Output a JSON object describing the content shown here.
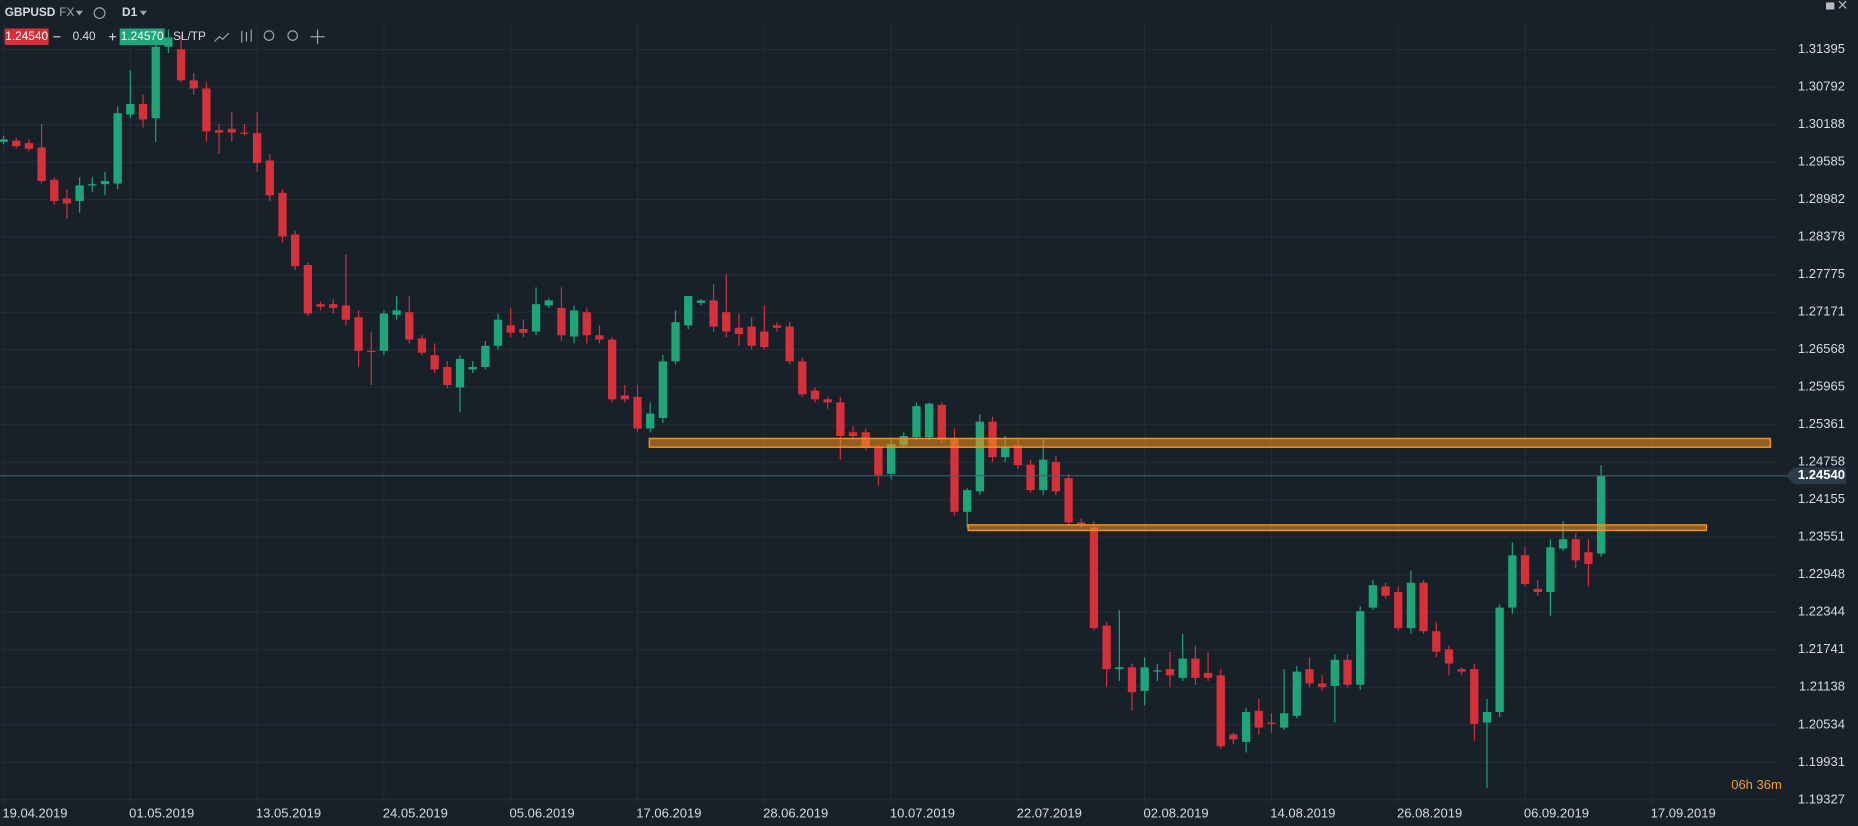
{
  "header": {
    "symbol": "GBPUSD",
    "market": "FX",
    "timeframe": "D1",
    "bid": "1.24540",
    "spread": "0.40",
    "ask": "1.24570",
    "sltp": "SL/TP",
    "countdown": "06h 36m"
  },
  "chart_data": {
    "type": "candlestick",
    "categories": [
      "19.04.2019",
      null,
      null,
      null,
      null,
      null,
      null,
      null,
      null,
      null,
      "01.05.2019",
      null,
      null,
      null,
      null,
      null,
      null,
      null,
      null,
      null,
      "13.05.2019",
      null,
      null,
      null,
      null,
      null,
      null,
      null,
      null,
      null,
      "24.05.2019",
      null,
      null,
      null,
      null,
      null,
      null,
      null,
      null,
      null,
      "05.06.2019",
      null,
      null,
      null,
      null,
      null,
      null,
      null,
      null,
      null,
      "17.06.2019",
      null,
      null,
      null,
      null,
      null,
      null,
      null,
      null,
      null,
      "28.06.2019",
      null,
      null,
      null,
      null,
      null,
      null,
      null,
      null,
      null,
      "10.07.2019",
      null,
      null,
      null,
      null,
      null,
      null,
      null,
      null,
      null,
      "22.07.2019",
      null,
      null,
      null,
      null,
      null,
      null,
      null,
      null,
      null,
      "02.08.2019",
      null,
      null,
      null,
      null,
      null,
      null,
      null,
      null,
      null,
      "14.08.2019",
      null,
      null,
      null,
      null,
      null,
      null,
      null,
      null,
      null,
      "26.08.2019",
      null,
      null,
      null,
      null,
      null,
      null,
      null,
      null,
      null,
      "06.09.2019",
      null,
      null,
      null,
      null,
      null,
      null,
      null,
      null,
      null,
      "17.09.2019"
    ],
    "open": [
      1.2991,
      1.2993,
      1.2989,
      1.2982,
      1.293,
      1.29,
      1.2896,
      1.2921,
      1.2923,
      1.2924,
      1.3035,
      1.3052,
      1.3029,
      1.3144,
      1.314,
      1.309,
      1.3077,
      1.301,
      1.3012,
      1.3006,
      1.3005,
      1.2961,
      1.2909,
      1.2842,
      1.2793,
      1.273,
      1.273,
      1.2728,
      1.2709,
      1.2655,
      1.2655,
      1.2713,
      1.2717,
      1.2675,
      1.2648,
      1.2629,
      1.2596,
      1.2625,
      1.2629,
      1.2663,
      1.2696,
      1.269,
      1.2686,
      1.2728,
      1.2724,
      1.2678,
      1.2717,
      1.268,
      1.2673,
      1.2583,
      1.2581,
      1.253,
      1.2547,
      1.2638,
      1.2696,
      1.2732,
      1.2736,
      1.2717,
      1.2692,
      1.2694,
      1.2686,
      1.2696,
      1.2694,
      1.2638,
      1.2591,
      1.2577,
      1.2572,
      1.2524,
      1.2524,
      1.2499,
      1.2457,
      1.2503,
      1.2516,
      1.2516,
      1.2568,
      1.2514,
      1.2396,
      1.2429,
      1.2541,
      1.2484,
      1.2503,
      1.2472,
      1.2431,
      1.2476,
      1.245,
      1.2379,
      1.2371,
      1.2213,
      1.2143,
      1.2146,
      1.2108,
      1.2139,
      1.2143,
      1.2129,
      1.216,
      1.2137,
      1.2133,
      1.2038,
      1.2026,
      1.2076,
      1.2057,
      1.2049,
      1.2068,
      1.2143,
      1.212,
      1.2116,
      1.2158,
      1.2118,
      1.2242,
      1.2276,
      1.2267,
      1.2209,
      1.2282,
      1.2204,
      1.2175,
      1.2143,
      1.2143,
      1.2057,
      1.2074,
      1.2242,
      1.2326,
      1.2272,
      1.2267,
      1.2337,
      1.2352,
      1.2331,
      1.2329,
      null,
      null,
      null,
      null
    ],
    "high": [
      1.3001,
      1.2997,
      1.2995,
      1.302,
      1.2934,
      1.2915,
      1.2934,
      1.2934,
      1.2943,
      1.3048,
      1.3106,
      1.3067,
      1.3153,
      1.3172,
      1.3163,
      1.3102,
      1.3087,
      1.302,
      1.3039,
      1.302,
      1.3039,
      1.2972,
      1.2915,
      1.2848,
      1.2797,
      1.2734,
      1.2738,
      1.281,
      1.272,
      1.2686,
      1.272,
      1.2743,
      1.2743,
      1.268,
      1.2667,
      1.2638,
      1.2648,
      1.2638,
      1.2671,
      1.2715,
      1.2724,
      1.2705,
      1.2757,
      1.2739,
      1.2757,
      1.2728,
      1.2724,
      1.2696,
      1.2677,
      1.26,
      1.26,
      1.2572,
      1.2648,
      1.272,
      1.2743,
      1.2738,
      1.2762,
      1.2778,
      1.2715,
      1.2709,
      1.2728,
      1.2701,
      1.2701,
      1.2644,
      1.2596,
      1.2581,
      1.2581,
      1.2534,
      1.253,
      1.2505,
      1.2514,
      1.2524,
      1.2572,
      1.2572,
      1.2572,
      1.253,
      1.2434,
      1.2553,
      1.2549,
      1.2518,
      1.2514,
      1.248,
      1.2514,
      1.2486,
      1.2457,
      1.2385,
      1.2381,
      1.2219,
      1.2238,
      1.2152,
      1.2162,
      1.2152,
      1.2171,
      1.22,
      1.2181,
      1.2171,
      1.2143,
      1.2041,
      1.208,
      1.2095,
      1.2072,
      1.2143,
      1.2148,
      1.2162,
      1.2133,
      1.2167,
      1.2167,
      1.2244,
      1.2286,
      1.2282,
      1.2276,
      1.2301,
      1.2286,
      1.2219,
      1.2181,
      1.2146,
      1.2152,
      1.2095,
      1.2247,
      1.2347,
      1.2339,
      1.2286,
      1.2352,
      1.2381,
      1.2362,
      1.2352,
      1.2471,
      null,
      null,
      null,
      null
    ],
    "low": [
      1.2987,
      1.298,
      1.2976,
      1.2924,
      1.289,
      1.2867,
      1.2877,
      1.2911,
      1.2905,
      1.2915,
      1.3029,
      1.3014,
      1.2991,
      1.3134,
      1.3087,
      1.3067,
      1.2991,
      1.2972,
      1.2991,
      1.3001,
      1.2943,
      1.2896,
      1.2829,
      1.2785,
      1.2711,
      1.272,
      1.2715,
      1.2696,
      1.2629,
      1.26,
      1.2648,
      1.2705,
      1.2667,
      1.2648,
      1.2619,
      1.2595,
      1.2556,
      1.2619,
      1.2625,
      1.2657,
      1.2677,
      1.2677,
      1.268,
      1.2724,
      1.2671,
      1.2667,
      1.2667,
      1.2667,
      1.2572,
      1.2572,
      1.2524,
      1.2524,
      1.2539,
      1.2633,
      1.269,
      1.2728,
      1.2686,
      1.2677,
      1.2663,
      1.2657,
      1.2657,
      1.2686,
      1.2633,
      1.2581,
      1.2572,
      1.2562,
      1.248,
      1.2511,
      1.2495,
      1.2438,
      1.2448,
      1.2499,
      1.2511,
      1.2511,
      1.2507,
      1.239,
      1.2371,
      1.2423,
      1.2476,
      1.2476,
      1.2465,
      1.2427,
      1.2423,
      1.2423,
      1.2373,
      1.2371,
      1.2205,
      1.2114,
      1.2124,
      1.2076,
      1.2085,
      1.2124,
      1.2114,
      1.2124,
      1.2118,
      1.2124,
      1.2015,
      1.2022,
      1.2009,
      1.2038,
      1.2041,
      1.2045,
      1.2064,
      1.2114,
      1.2108,
      1.2057,
      1.2114,
      1.211,
      1.2238,
      1.2257,
      1.2205,
      1.22,
      1.22,
      1.2162,
      1.2133,
      1.2133,
      1.2028,
      1.1952,
      1.2066,
      1.2232,
      1.2276,
      1.2261,
      1.2228,
      1.2333,
      1.2305,
      1.2276,
      1.2324,
      null,
      null,
      null,
      null
    ],
    "close": [
      1.2995,
      1.2984,
      1.298,
      1.2928,
      1.2896,
      1.2892,
      1.2921,
      1.2923,
      1.2928,
      1.3037,
      1.3052,
      1.3027,
      1.3144,
      1.3159,
      1.309,
      1.3077,
      1.3008,
      1.3006,
      1.3006,
      1.3005,
      1.2957,
      1.2905,
      1.2839,
      1.2791,
      1.2715,
      1.2726,
      1.2724,
      1.2705,
      1.2655,
      1.2654,
      1.2715,
      1.272,
      1.2673,
      1.2652,
      1.2625,
      1.26,
      1.2642,
      1.2629,
      1.2663,
      1.2705,
      1.2684,
      1.2684,
      1.273,
      1.2736,
      1.268,
      1.272,
      1.268,
      1.2673,
      1.2577,
      1.2577,
      1.253,
      1.2554,
      1.2638,
      1.2701,
      1.2743,
      1.2736,
      1.2694,
      1.2686,
      1.2682,
      1.2663,
      1.2661,
      1.2692,
      1.2638,
      1.2585,
      1.2577,
      1.2572,
      1.2518,
      1.2518,
      1.2499,
      1.2455,
      1.2505,
      1.2518,
      1.2566,
      1.257,
      1.2512,
      1.2396,
      1.2431,
      1.2541,
      1.2484,
      1.2501,
      1.2471,
      1.2431,
      1.248,
      1.2429,
      1.2379,
      1.2375,
      1.2209,
      1.2143,
      1.2146,
      1.2106,
      1.2146,
      1.2141,
      1.2133,
      1.216,
      1.2129,
      1.2129,
      1.2019,
      1.203,
      1.2074,
      1.2049,
      1.2055,
      1.2072,
      1.2139,
      1.212,
      1.2114,
      1.2158,
      1.2118,
      1.2236,
      1.2278,
      1.2261,
      1.2209,
      1.2282,
      1.2204,
      1.2171,
      1.2152,
      1.2139,
      1.2055,
      1.2074,
      1.2242,
      1.2326,
      1.228,
      1.2267,
      1.2339,
      1.2352,
      1.2318,
      1.2312,
      1.2454,
      null,
      null,
      null,
      null
    ],
    "up_color": "#1fa57a",
    "down_color": "#d6303b",
    "ylim": [
      1.1927,
      1.3181
    ],
    "yticks": [
      1.31395,
      1.30792,
      1.30188,
      1.29585,
      1.28982,
      1.28378,
      1.27775,
      1.27171,
      1.26568,
      1.25965,
      1.25361,
      1.24758,
      1.24155,
      1.23551,
      1.22948,
      1.22344,
      1.21741,
      1.21138,
      1.20534,
      1.19931,
      1.19327
    ],
    "grid": true,
    "last_price": {
      "value": 1.2454,
      "label": "1.24540"
    },
    "zones": [
      {
        "low": 1.25,
        "high": 1.2514,
        "color": "#f7931a"
      },
      {
        "low": 1.2366,
        "high": 1.2375,
        "color": "#f7931a"
      }
    ]
  }
}
